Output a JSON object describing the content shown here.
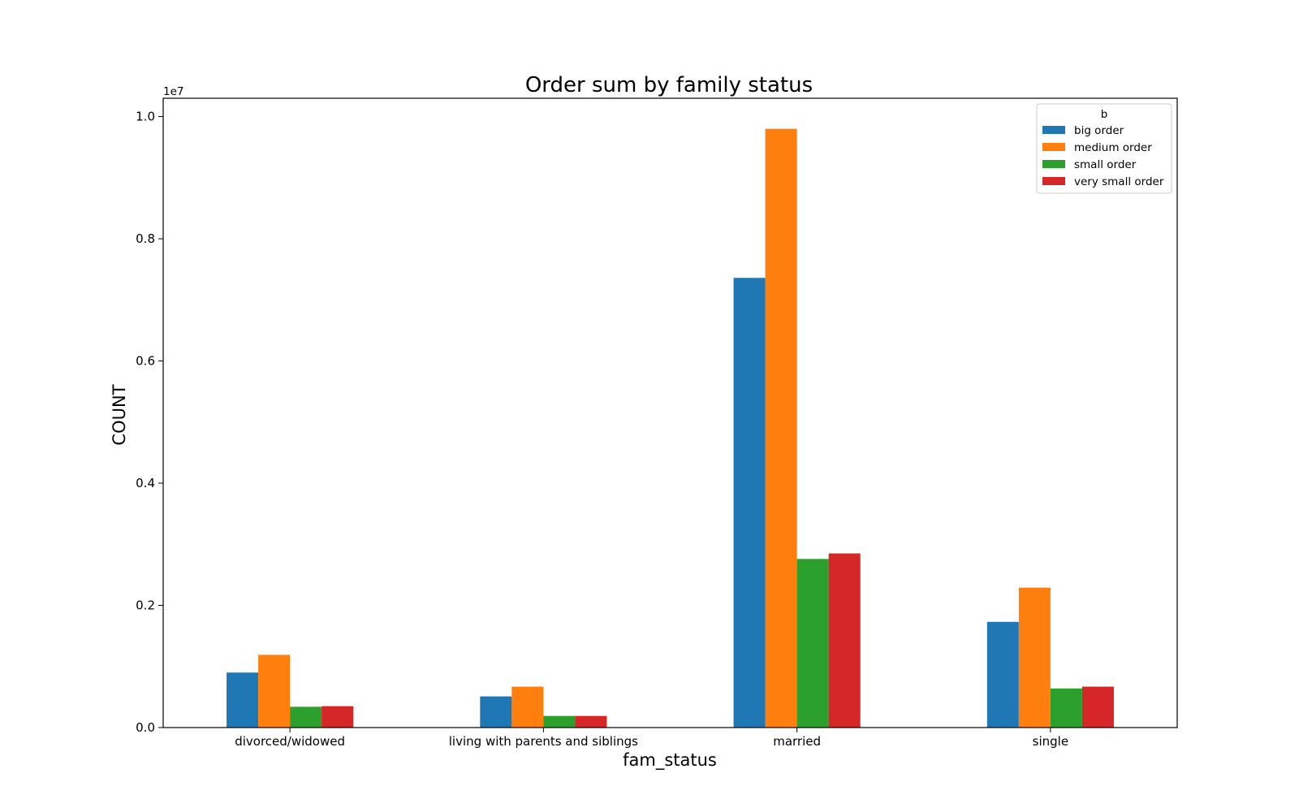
{
  "chart_data": {
    "type": "bar",
    "title": "Order sum by family status",
    "xlabel": "fam_status",
    "ylabel": "COUNT",
    "y_scale_factor_label": "1e7",
    "ylim": [
      0,
      10300000
    ],
    "y_ticks": [
      0,
      2000000,
      4000000,
      6000000,
      8000000,
      10000000
    ],
    "y_tick_labels": [
      "0.0",
      "0.2",
      "0.4",
      "0.6",
      "0.8",
      "1.0"
    ],
    "grid": false,
    "legend_title": "b",
    "legend_position": "top-right",
    "categories": [
      "divorced/widowed",
      "living with parents and siblings",
      "married",
      "single"
    ],
    "series": [
      {
        "name": "big order",
        "color": "#1f77b4",
        "values": [
          900000,
          510000,
          7360000,
          1730000
        ]
      },
      {
        "name": "medium order",
        "color": "#ff7f0e",
        "values": [
          1190000,
          670000,
          9800000,
          2290000
        ]
      },
      {
        "name": "small order",
        "color": "#2ca02c",
        "values": [
          340000,
          190000,
          2760000,
          640000
        ]
      },
      {
        "name": "very small order",
        "color": "#d62728",
        "values": [
          350000,
          190000,
          2850000,
          670000
        ]
      }
    ]
  }
}
